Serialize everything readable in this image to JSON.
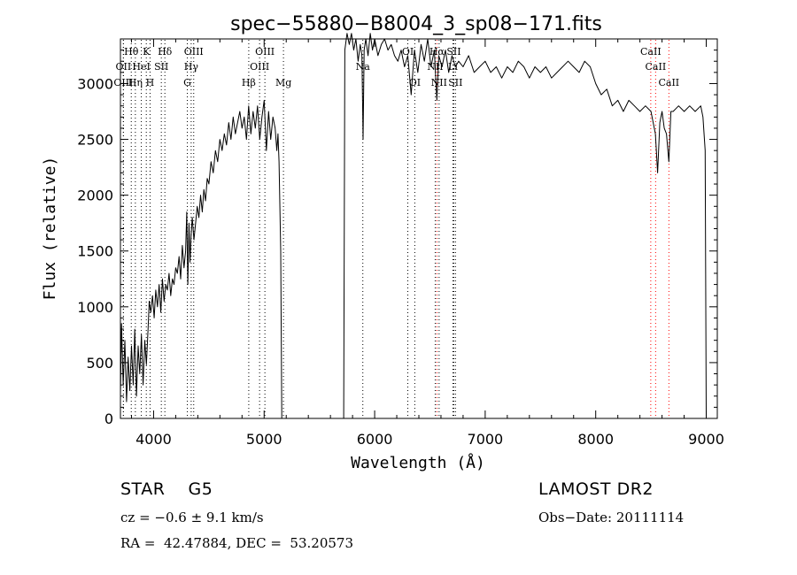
{
  "chart_data": {
    "type": "line",
    "title": "spec−55880−B8004_3_sp08−171.fits",
    "xlabel": "Wavelength (Å)",
    "ylabel": "Flux (relative)",
    "xlim": [
      3700,
      9100
    ],
    "ylim": [
      0,
      3400
    ],
    "xticks": [
      4000,
      5000,
      6000,
      7000,
      8000,
      9000
    ],
    "yticks": [
      0,
      500,
      1000,
      1500,
      2000,
      2500,
      3000
    ],
    "grid": false,
    "series": [
      {
        "x": [
          3700,
          3710,
          3725,
          3740,
          3755,
          3770,
          3785,
          3800,
          3815,
          3830,
          3845,
          3860,
          3875,
          3890,
          3905,
          3920,
          3935,
          3950,
          3960,
          3975,
          3990,
          4005,
          4020,
          4035,
          4050,
          4065,
          4080,
          4095,
          4110,
          4125,
          4140,
          4155,
          4170,
          4185,
          4200,
          4215,
          4230,
          4245,
          4260,
          4275,
          4290,
          4300,
          4310,
          4320,
          4330,
          4340,
          4350,
          4365,
          4380,
          4395,
          4410,
          4425,
          4440,
          4455,
          4470,
          4485,
          4500,
          4520,
          4540,
          4560,
          4580,
          4600,
          4620,
          4640,
          4660,
          4680,
          4700,
          4720,
          4740,
          4760,
          4780,
          4800,
          4820,
          4840,
          4860,
          4880,
          4900,
          4920,
          4940,
          4960,
          4980,
          5000,
          5020,
          5040,
          5060,
          5080,
          5100,
          5115,
          5125,
          5135,
          5150,
          5160
        ],
        "y": [
          200,
          850,
          300,
          700,
          150,
          550,
          250,
          650,
          300,
          800,
          200,
          650,
          400,
          750,
          300,
          700,
          480,
          800,
          1050,
          950,
          1100,
          900,
          1150,
          1000,
          1200,
          950,
          1250,
          1050,
          1200,
          1150,
          1300,
          1100,
          1250,
          1200,
          1350,
          1300,
          1450,
          1250,
          1550,
          1350,
          1500,
          1850,
          1200,
          1750,
          1400,
          1650,
          1800,
          1600,
          1750,
          1900,
          1800,
          2000,
          1850,
          2050,
          1950,
          2150,
          2100,
          2300,
          2200,
          2400,
          2300,
          2500,
          2400,
          2550,
          2450,
          2650,
          2500,
          2700,
          2550,
          2650,
          2750,
          2600,
          2700,
          2500,
          2800,
          2550,
          2750,
          2600,
          2800,
          2500,
          2700,
          2850,
          2400,
          2750,
          2500,
          2700,
          2600,
          2400,
          2550,
          2300,
          1500,
          0
        ]
      },
      {
        "x": [
          5720,
          5730,
          5750,
          5770,
          5790,
          5810,
          5830,
          5850,
          5870,
          5885,
          5895,
          5905,
          5920,
          5940,
          5960,
          5980,
          6000,
          6030,
          6060,
          6090,
          6120,
          6150,
          6180,
          6210,
          6240,
          6270,
          6300,
          6330,
          6360,
          6390,
          6420,
          6450,
          6480,
          6510,
          6540,
          6563,
          6580,
          6610,
          6640,
          6670,
          6700,
          6730,
          6760,
          6800,
          6850,
          6900,
          6950,
          7000,
          7050,
          7100,
          7150,
          7200,
          7250,
          7300,
          7350,
          7400,
          7450,
          7500,
          7550,
          7600,
          7650,
          7700,
          7750,
          7800,
          7850,
          7900,
          7950,
          8000,
          8050,
          8100,
          8150,
          8200,
          8250,
          8300,
          8350,
          8400,
          8450,
          8500,
          8520,
          8540,
          8560,
          8580,
          8600,
          8620,
          8640,
          8662,
          8680,
          8700,
          8750,
          8800,
          8850,
          8900,
          8950,
          8970,
          8990,
          9000
        ],
        "y": [
          0,
          3300,
          3450,
          3350,
          3450,
          3300,
          3400,
          3200,
          3350,
          3250,
          2500,
          3300,
          3400,
          3250,
          3450,
          3300,
          3400,
          3250,
          3350,
          3400,
          3300,
          3350,
          3250,
          3200,
          3300,
          3150,
          3250,
          2900,
          3300,
          3100,
          3350,
          3200,
          3400,
          3150,
          3300,
          2850,
          3250,
          3150,
          3300,
          3100,
          3250,
          3150,
          3200,
          3150,
          3250,
          3100,
          3150,
          3200,
          3100,
          3150,
          3050,
          3150,
          3100,
          3200,
          3150,
          3050,
          3150,
          3100,
          3150,
          3050,
          3100,
          3150,
          3200,
          3150,
          3100,
          3200,
          3150,
          3000,
          2900,
          2950,
          2800,
          2850,
          2750,
          2850,
          2800,
          2750,
          2800,
          2750,
          2650,
          2550,
          2200,
          2650,
          2750,
          2600,
          2550,
          2300,
          2750,
          2750,
          2800,
          2750,
          2800,
          2750,
          2800,
          2700,
          2400,
          0
        ]
      }
    ],
    "lines": [
      {
        "label": "Hθ",
        "x": 3798,
        "row": 1,
        "color": "#000000"
      },
      {
        "label": "K",
        "x": 3934,
        "row": 1,
        "color": "#000000"
      },
      {
        "label": "Hδ",
        "x": 4102,
        "row": 1,
        "color": "#000000"
      },
      {
        "label": "OIII",
        "x": 4363,
        "row": 1,
        "color": "#000000"
      },
      {
        "label": "OIII",
        "x": 5007,
        "row": 1,
        "color": "#000000"
      },
      {
        "label": "OI",
        "x": 6300,
        "row": 1,
        "color": "#000000"
      },
      {
        "label": "Hα",
        "x": 6563,
        "row": 1,
        "color": "#ff0000"
      },
      {
        "label": "SII",
        "x": 6716,
        "row": 1,
        "color": "#000000"
      },
      {
        "label": "CaII",
        "x": 8498,
        "row": 1,
        "color": "#ff0000"
      },
      {
        "label": "OII",
        "x": 3727,
        "row": 2,
        "color": "#000000"
      },
      {
        "label": "HeI",
        "x": 3889,
        "row": 2,
        "color": "#000000"
      },
      {
        "label": "SII",
        "x": 4070,
        "row": 2,
        "color": "#000000"
      },
      {
        "label": "Hγ",
        "x": 4340,
        "row": 2,
        "color": "#000000"
      },
      {
        "label": "OIII",
        "x": 4959,
        "row": 2,
        "color": "#000000"
      },
      {
        "label": "Na",
        "x": 5893,
        "row": 2,
        "color": "#000000"
      },
      {
        "label": "NII",
        "x": 6548,
        "row": 2,
        "color": "#000000"
      },
      {
        "label": "Li",
        "x": 6708,
        "row": 2,
        "color": "#000000"
      },
      {
        "label": "CaII",
        "x": 8542,
        "row": 2,
        "color": "#ff0000"
      },
      {
        "label": "OIII",
        "x": 3727,
        "row": 3,
        "color": "#000000"
      },
      {
        "label": "Hη",
        "x": 3835,
        "row": 3,
        "color": "#000000"
      },
      {
        "label": "H",
        "x": 3968,
        "row": 3,
        "color": "#000000"
      },
      {
        "label": "G",
        "x": 4305,
        "row": 3,
        "color": "#000000"
      },
      {
        "label": "Hβ",
        "x": 4861,
        "row": 3,
        "color": "#000000"
      },
      {
        "label": "Mg",
        "x": 5175,
        "row": 3,
        "color": "#000000"
      },
      {
        "label": "OI",
        "x": 6363,
        "row": 3,
        "color": "#000000"
      },
      {
        "label": "NII",
        "x": 6583,
        "row": 3,
        "color": "#000000"
      },
      {
        "label": "SII",
        "x": 6731,
        "row": 3,
        "color": "#000000"
      },
      {
        "label": "CaII",
        "x": 8662,
        "row": 3,
        "color": "#ff0000"
      }
    ]
  },
  "footer": {
    "class_label": "STAR    G5",
    "survey": "LAMOST DR2",
    "cz": "cz = −0.6 ± 9.1 km/s",
    "obs_date": "Obs−Date: 20111114",
    "coords": "RA =  42.47884, DEC =  53.20573"
  }
}
